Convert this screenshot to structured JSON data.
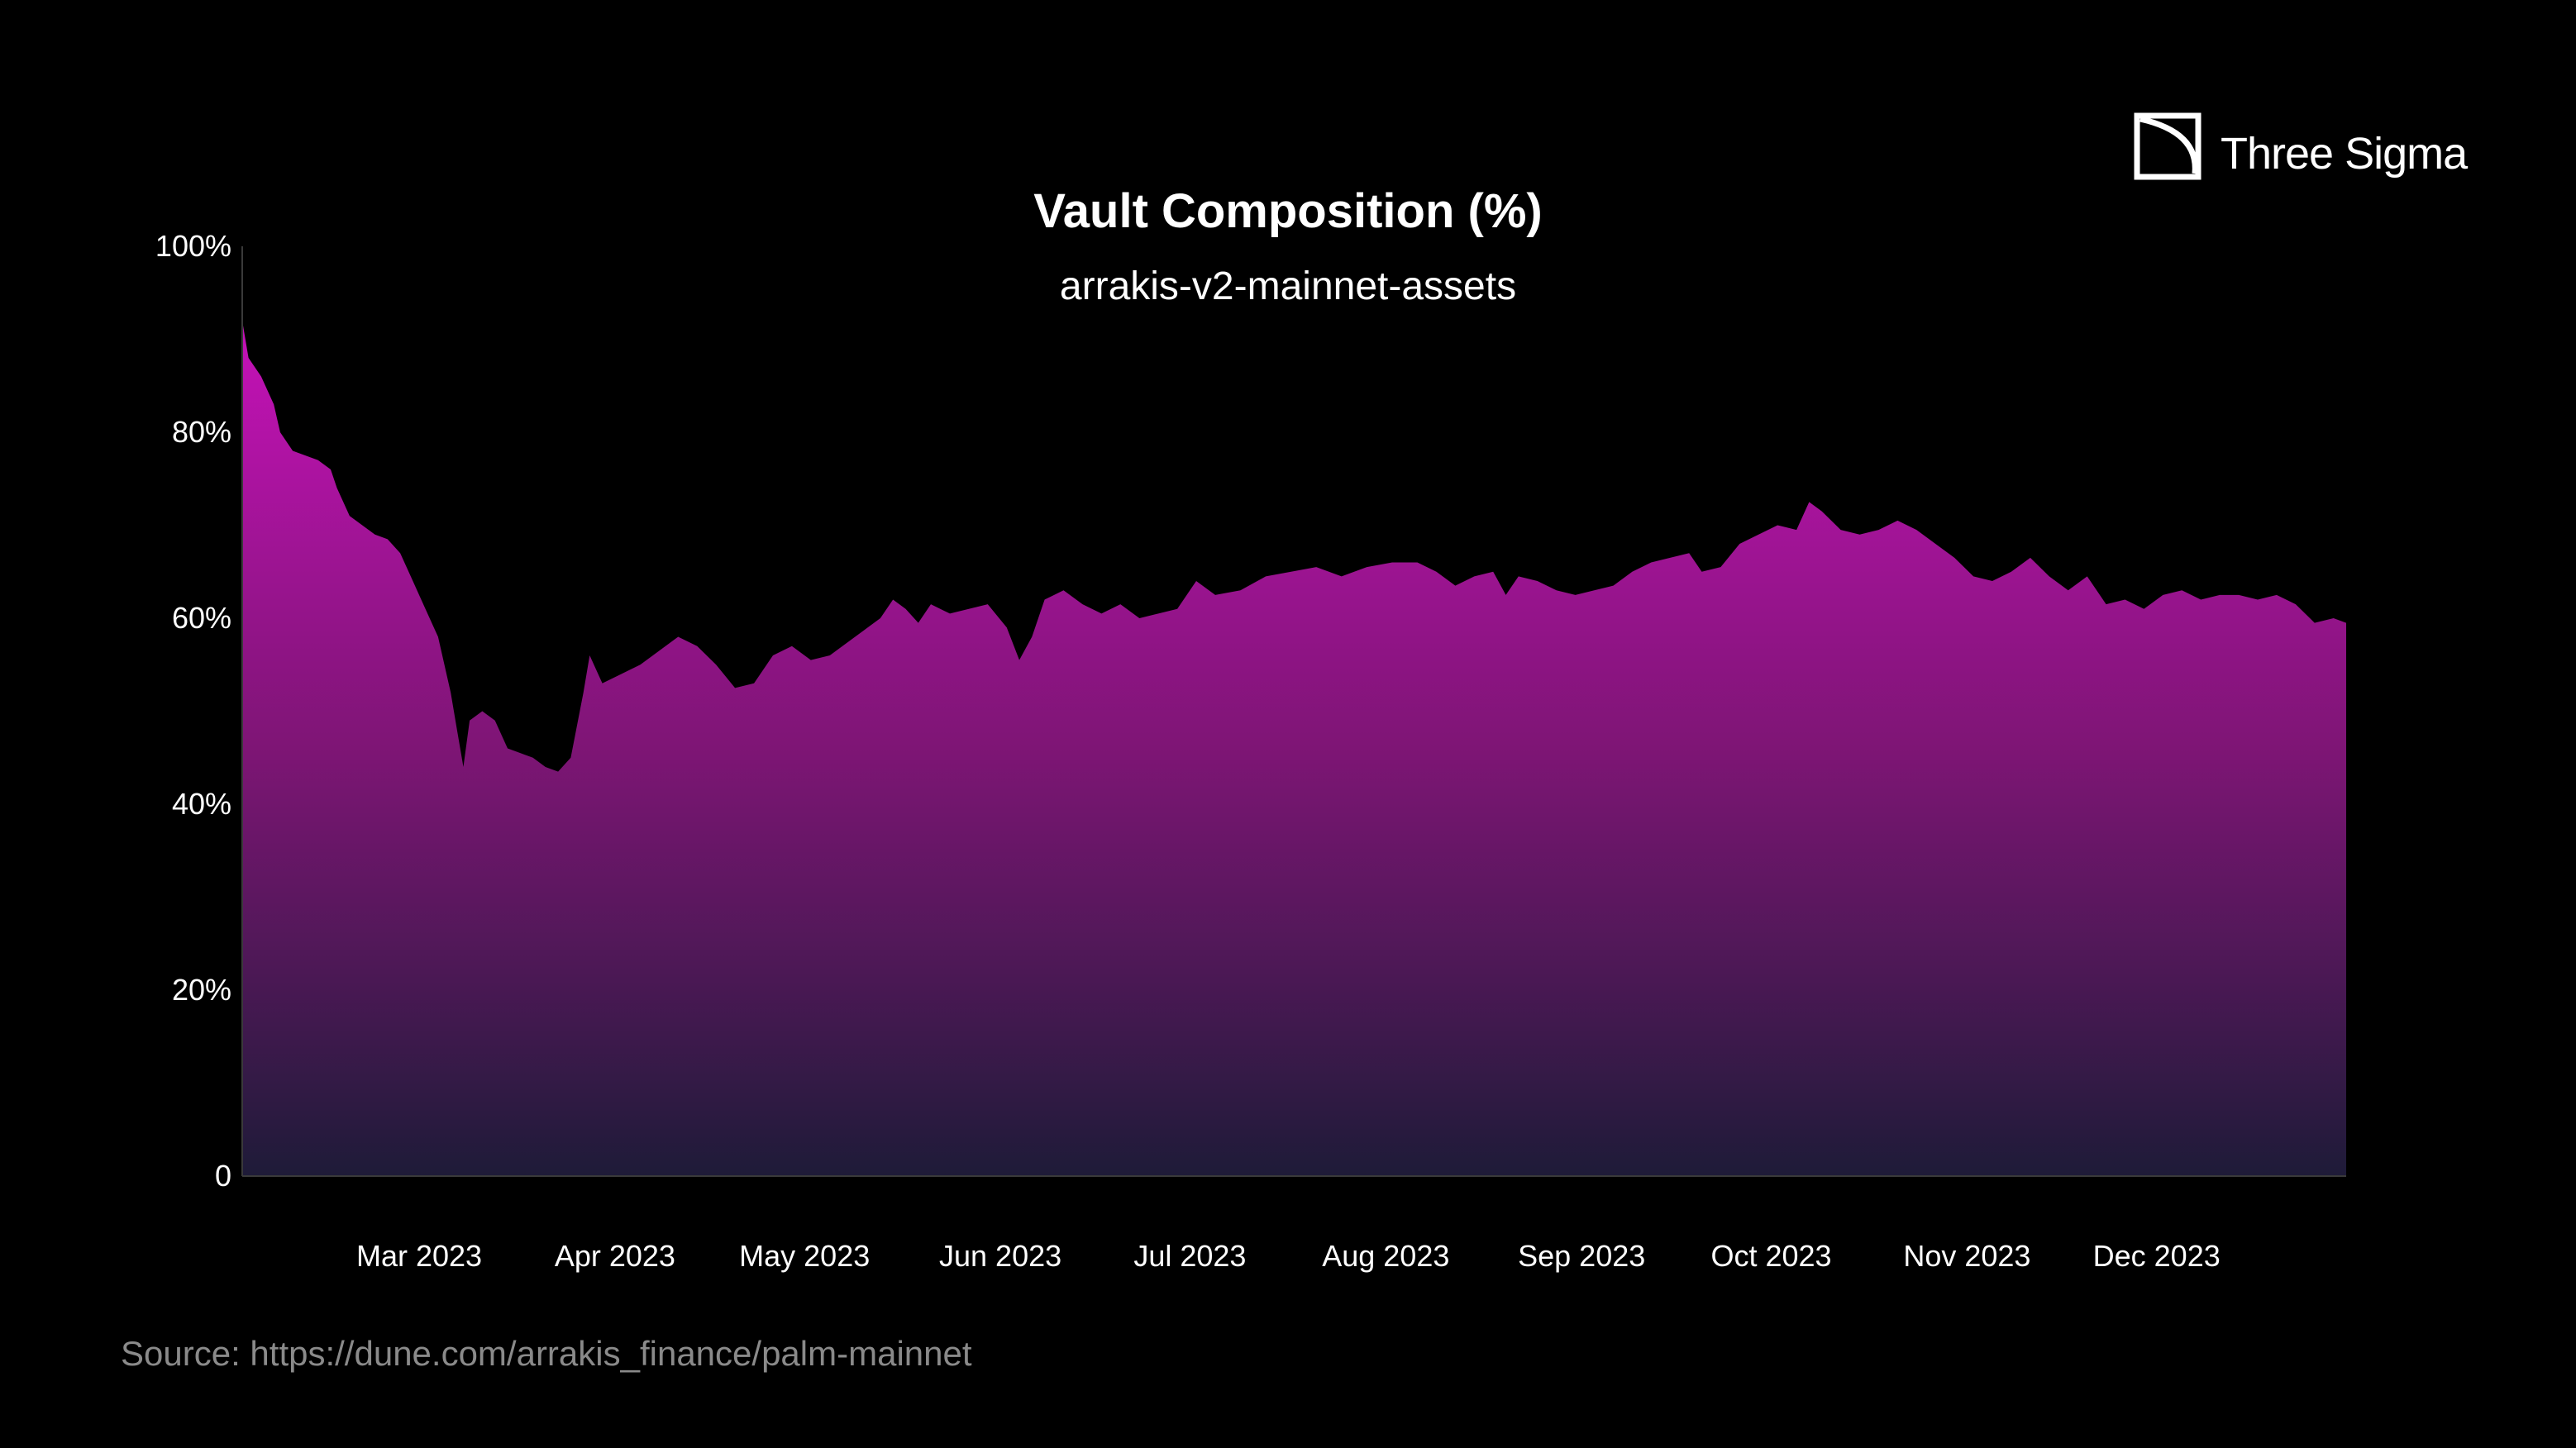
{
  "brand": {
    "name": "Three Sigma",
    "icon": "three-sigma-logo-icon"
  },
  "source": "Source: https://dune.com/arrakis_finance/palm-mainnet",
  "colors": {
    "background": "#000000",
    "area_top": "#c512b8",
    "area_mid": "#7e1575",
    "area_bottom": "#1e1b38",
    "text": "#ffffff",
    "muted_text": "#8a8a8a"
  },
  "chart_data": {
    "type": "area",
    "title": "Vault Composition (%)",
    "subtitle": "arrakis-v2-mainnet-assets",
    "xlabel": "",
    "ylabel": "",
    "grid": false,
    "legend": "none",
    "ylim": [
      0,
      100
    ],
    "xlim": [
      "2023-02-01",
      "2023-12-31"
    ],
    "y_ticks": [
      {
        "value": 0,
        "label": "0"
      },
      {
        "value": 20,
        "label": "20%"
      },
      {
        "value": 40,
        "label": "40%"
      },
      {
        "value": 60,
        "label": "60%"
      },
      {
        "value": 80,
        "label": "80%"
      },
      {
        "value": 100,
        "label": "100%"
      }
    ],
    "x_ticks": [
      {
        "date": "2023-03-01",
        "label": "Mar 2023"
      },
      {
        "date": "2023-04-01",
        "label": "Apr 2023"
      },
      {
        "date": "2023-05-01",
        "label": "May 2023"
      },
      {
        "date": "2023-06-01",
        "label": "Jun 2023"
      },
      {
        "date": "2023-07-01",
        "label": "Jul 2023"
      },
      {
        "date": "2023-08-01",
        "label": "Aug 2023"
      },
      {
        "date": "2023-09-01",
        "label": "Sep 2023"
      },
      {
        "date": "2023-10-01",
        "label": "Oct 2023"
      },
      {
        "date": "2023-11-01",
        "label": "Nov 2023"
      },
      {
        "date": "2023-12-01",
        "label": "Dec 2023"
      }
    ],
    "series": [
      {
        "points": [
          [
            "2023-02-01",
            92
          ],
          [
            "2023-02-02",
            88
          ],
          [
            "2023-02-04",
            86
          ],
          [
            "2023-02-06",
            83
          ],
          [
            "2023-02-07",
            80
          ],
          [
            "2023-02-09",
            78
          ],
          [
            "2023-02-11",
            77.5
          ],
          [
            "2023-02-13",
            77
          ],
          [
            "2023-02-15",
            76
          ],
          [
            "2023-02-16",
            74
          ],
          [
            "2023-02-18",
            71
          ],
          [
            "2023-02-20",
            70
          ],
          [
            "2023-02-22",
            69
          ],
          [
            "2023-02-24",
            68.5
          ],
          [
            "2023-02-26",
            67
          ],
          [
            "2023-02-28",
            64
          ],
          [
            "2023-03-02",
            61
          ],
          [
            "2023-03-04",
            58
          ],
          [
            "2023-03-06",
            52
          ],
          [
            "2023-03-07",
            48
          ],
          [
            "2023-03-08",
            44
          ],
          [
            "2023-03-09",
            49
          ],
          [
            "2023-03-11",
            50
          ],
          [
            "2023-03-13",
            49
          ],
          [
            "2023-03-15",
            46
          ],
          [
            "2023-03-17",
            45.5
          ],
          [
            "2023-03-19",
            45
          ],
          [
            "2023-03-21",
            44
          ],
          [
            "2023-03-23",
            43.5
          ],
          [
            "2023-03-25",
            45
          ],
          [
            "2023-03-27",
            52
          ],
          [
            "2023-03-28",
            56
          ],
          [
            "2023-03-30",
            53
          ],
          [
            "2023-04-02",
            54
          ],
          [
            "2023-04-05",
            55
          ],
          [
            "2023-04-08",
            56.5
          ],
          [
            "2023-04-11",
            58
          ],
          [
            "2023-04-14",
            57
          ],
          [
            "2023-04-17",
            55
          ],
          [
            "2023-04-20",
            52.5
          ],
          [
            "2023-04-23",
            53
          ],
          [
            "2023-04-26",
            56
          ],
          [
            "2023-04-29",
            57
          ],
          [
            "2023-05-02",
            55.5
          ],
          [
            "2023-05-05",
            56
          ],
          [
            "2023-05-08",
            57.5
          ],
          [
            "2023-05-11",
            59
          ],
          [
            "2023-05-13",
            60
          ],
          [
            "2023-05-15",
            62
          ],
          [
            "2023-05-17",
            61
          ],
          [
            "2023-05-19",
            59.5
          ],
          [
            "2023-05-21",
            61.5
          ],
          [
            "2023-05-24",
            60.5
          ],
          [
            "2023-05-27",
            61
          ],
          [
            "2023-05-30",
            61.5
          ],
          [
            "2023-06-02",
            59
          ],
          [
            "2023-06-04",
            55.5
          ],
          [
            "2023-06-06",
            58
          ],
          [
            "2023-06-08",
            62
          ],
          [
            "2023-06-11",
            63
          ],
          [
            "2023-06-14",
            61.5
          ],
          [
            "2023-06-17",
            60.5
          ],
          [
            "2023-06-20",
            61.5
          ],
          [
            "2023-06-23",
            60
          ],
          [
            "2023-06-26",
            60.5
          ],
          [
            "2023-06-29",
            61
          ],
          [
            "2023-07-02",
            64
          ],
          [
            "2023-07-05",
            62.5
          ],
          [
            "2023-07-09",
            63
          ],
          [
            "2023-07-13",
            64.5
          ],
          [
            "2023-07-17",
            65
          ],
          [
            "2023-07-21",
            65.5
          ],
          [
            "2023-07-25",
            64.5
          ],
          [
            "2023-07-29",
            65.5
          ],
          [
            "2023-08-02",
            66
          ],
          [
            "2023-08-06",
            66
          ],
          [
            "2023-08-09",
            65
          ],
          [
            "2023-08-12",
            63.5
          ],
          [
            "2023-08-15",
            64.5
          ],
          [
            "2023-08-18",
            65
          ],
          [
            "2023-08-20",
            62.5
          ],
          [
            "2023-08-22",
            64.5
          ],
          [
            "2023-08-25",
            64
          ],
          [
            "2023-08-28",
            63
          ],
          [
            "2023-08-31",
            62.5
          ],
          [
            "2023-09-03",
            63
          ],
          [
            "2023-09-06",
            63.5
          ],
          [
            "2023-09-09",
            65
          ],
          [
            "2023-09-12",
            66
          ],
          [
            "2023-09-15",
            66.5
          ],
          [
            "2023-09-18",
            67
          ],
          [
            "2023-09-20",
            65
          ],
          [
            "2023-09-23",
            65.5
          ],
          [
            "2023-09-26",
            68
          ],
          [
            "2023-09-29",
            69
          ],
          [
            "2023-10-02",
            70
          ],
          [
            "2023-10-05",
            69.5
          ],
          [
            "2023-10-07",
            72.5
          ],
          [
            "2023-10-09",
            71.5
          ],
          [
            "2023-10-12",
            69.5
          ],
          [
            "2023-10-15",
            69
          ],
          [
            "2023-10-18",
            69.5
          ],
          [
            "2023-10-21",
            70.5
          ],
          [
            "2023-10-24",
            69.5
          ],
          [
            "2023-10-27",
            68
          ],
          [
            "2023-10-30",
            66.5
          ],
          [
            "2023-11-02",
            64.5
          ],
          [
            "2023-11-05",
            64
          ],
          [
            "2023-11-08",
            65
          ],
          [
            "2023-11-11",
            66.5
          ],
          [
            "2023-11-14",
            64.5
          ],
          [
            "2023-11-17",
            63
          ],
          [
            "2023-11-20",
            64.5
          ],
          [
            "2023-11-23",
            61.5
          ],
          [
            "2023-11-26",
            62
          ],
          [
            "2023-11-29",
            61
          ],
          [
            "2023-12-02",
            62.5
          ],
          [
            "2023-12-05",
            63
          ],
          [
            "2023-12-08",
            62
          ],
          [
            "2023-12-11",
            62.5
          ],
          [
            "2023-12-14",
            62.5
          ],
          [
            "2023-12-17",
            62
          ],
          [
            "2023-12-20",
            62.5
          ],
          [
            "2023-12-23",
            61.5
          ],
          [
            "2023-12-26",
            59.5
          ],
          [
            "2023-12-29",
            60
          ],
          [
            "2023-12-31",
            59.5
          ]
        ]
      }
    ]
  }
}
